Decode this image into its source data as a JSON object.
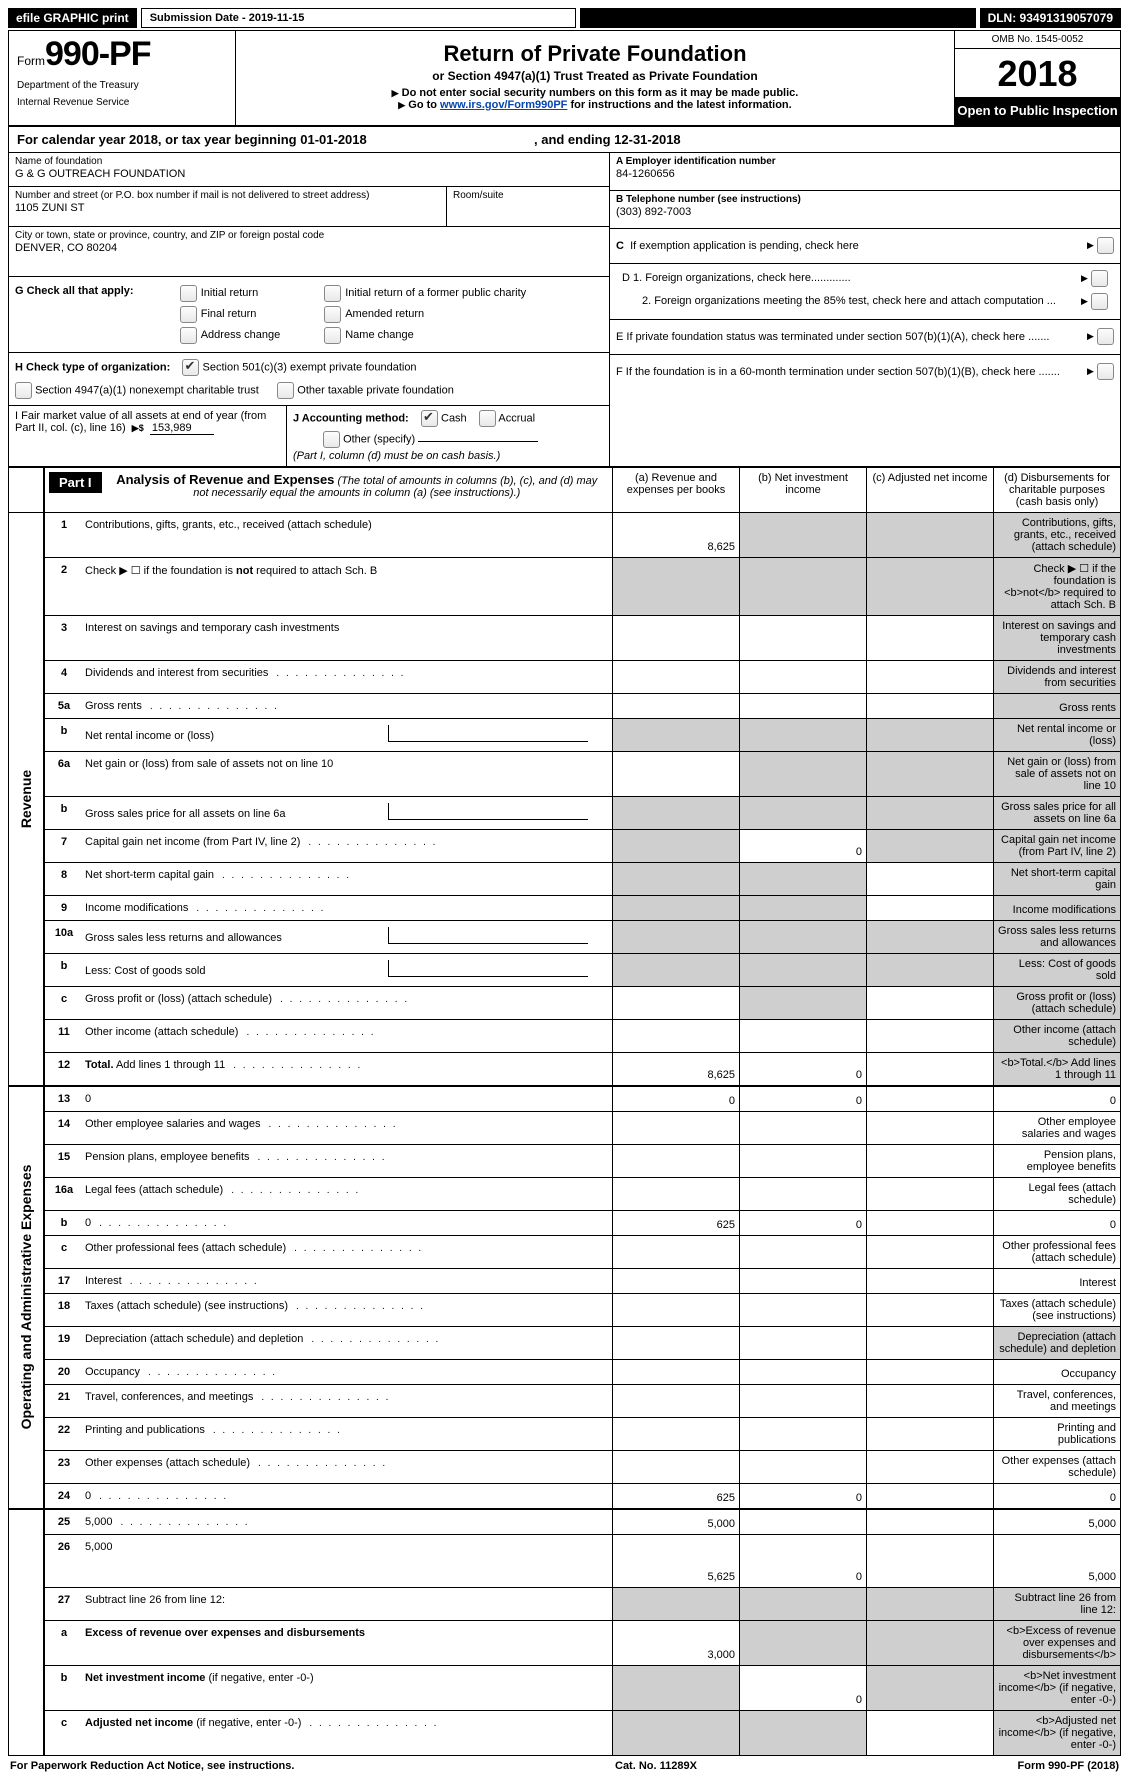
{
  "topbar": {
    "efile": "efile GRAPHIC print",
    "submission_label": "Submission Date - 2019-11-15",
    "dln": "DLN: 93491319057079"
  },
  "header": {
    "form_prefix": "Form",
    "form_number": "990-PF",
    "dept1": "Department of the Treasury",
    "dept2": "Internal Revenue Service",
    "title": "Return of Private Foundation",
    "subtitle1": "or Section 4947(a)(1) Trust Treated as Private Foundation",
    "subtitle2a": "Do not enter social security numbers on this form as it may be made public.",
    "subtitle2b_pre": "Go to ",
    "subtitle2b_link": "www.irs.gov/Form990PF",
    "subtitle2b_post": " for instructions and the latest information.",
    "omb": "OMB No. 1545-0052",
    "year": "2018",
    "open": "Open to Public Inspection"
  },
  "calendar_line": {
    "prefix": "For calendar year 2018, or tax year beginning ",
    "begin": "01-01-2018",
    "middle": " , and ending ",
    "end": "12-31-2018"
  },
  "entity": {
    "name_label": "Name of foundation",
    "name": "G & G OUTREACH FOUNDATION",
    "street_label": "Number and street (or P.O. box number if mail is not delivered to street address)",
    "street": "1105 ZUNI ST",
    "room_label": "Room/suite",
    "city_label": "City or town, state or province, country, and ZIP or foreign postal code",
    "city": "DENVER, CO  80204"
  },
  "boxesA_F": {
    "A_label": "A Employer identification number",
    "A_value": "84-1260656",
    "B_label": "B Telephone number (see instructions)",
    "B_value": "(303) 892-7003",
    "C_label": "C  If exemption application is pending, check here",
    "D1_label": "D 1. Foreign organizations, check here.............",
    "D2_label": "2. Foreign organizations meeting the 85% test, check here and attach computation ...",
    "E_label": "E   If private foundation status was terminated under section 507(b)(1)(A), check here .......",
    "F_label": "F   If the foundation is in a 60-month termination under section 507(b)(1)(B), check here ......."
  },
  "G": {
    "label": "G Check all that apply:",
    "opts": [
      "Initial return",
      "Initial return of a former public charity",
      "Final return",
      "Amended return",
      "Address change",
      "Name change"
    ]
  },
  "H": {
    "label": "H Check type of organization:",
    "opt1": "Section 501(c)(3) exempt private foundation",
    "opt1_checked": true,
    "opt2": "Section 4947(a)(1) nonexempt charitable trust",
    "opt3": "Other taxable private foundation"
  },
  "I": {
    "label": "I Fair market value of all assets at end of year (from Part II, col. (c), line 16)",
    "arrow": "▶$",
    "value": "153,989"
  },
  "J": {
    "label": "J Accounting method:",
    "cash": "Cash",
    "cash_checked": true,
    "accrual": "Accrual",
    "other": "Other (specify)",
    "note": "(Part I, column (d) must be on cash basis.)"
  },
  "part1": {
    "label": "Part I",
    "title": "Analysis of Revenue and Expenses",
    "note": "(The total of amounts in columns (b), (c), and (d) may not necessarily equal the amounts in column (a) (see instructions).)",
    "cols": {
      "a": "(a)    Revenue and expenses per books",
      "b": "(b)    Net investment income",
      "c": "(c)    Adjusted net income",
      "d": "(d)    Disbursements for charitable purposes (cash basis only)"
    }
  },
  "sections": {
    "rev": "Revenue",
    "exp": "Operating and Administrative Expenses"
  },
  "rows": [
    {
      "n": "1",
      "d": "Contributions, gifts, grants, etc., received (attach schedule)",
      "a": "8,625",
      "b_sh": true,
      "c_sh": true,
      "d_sh": true
    },
    {
      "n": "2",
      "d": "Check ▶ ☐ if the foundation is <b>not</b> required to attach Sch. B",
      "a_sh": true,
      "b_sh": true,
      "c_sh": true,
      "d_sh": true
    },
    {
      "n": "3",
      "d": "Interest on savings and temporary cash investments",
      "d_sh": true
    },
    {
      "n": "4",
      "d": "Dividends and interest from securities",
      "dots": true,
      "d_sh": true
    },
    {
      "n": "5a",
      "d": "Gross rents",
      "dots": true,
      "d_sh": true
    },
    {
      "n": "b",
      "d": "Net rental income or (loss)",
      "half": true,
      "a_sh": true,
      "b_sh": true,
      "c_sh": true,
      "d_sh": true
    },
    {
      "n": "6a",
      "d": "Net gain or (loss) from sale of assets not on line 10",
      "b_sh": true,
      "c_sh": true,
      "d_sh": true
    },
    {
      "n": "b",
      "d": "Gross sales price for all assets on line 6a",
      "half": true,
      "a_sh": true,
      "b_sh": true,
      "c_sh": true,
      "d_sh": true
    },
    {
      "n": "7",
      "d": "Capital gain net income (from Part IV, line 2)",
      "dots": true,
      "a_sh": true,
      "b": "0",
      "c_sh": true,
      "d_sh": true
    },
    {
      "n": "8",
      "d": "Net short-term capital gain",
      "dots": true,
      "a_sh": true,
      "b_sh": true,
      "d_sh": true
    },
    {
      "n": "9",
      "d": "Income modifications",
      "dots": true,
      "a_sh": true,
      "b_sh": true,
      "d_sh": true
    },
    {
      "n": "10a",
      "d": "Gross sales less returns and allowances",
      "half": true,
      "a_sh": true,
      "b_sh": true,
      "c_sh": true,
      "d_sh": true
    },
    {
      "n": "b",
      "d": "Less: Cost of goods sold",
      "dots": true,
      "half": true,
      "a_sh": true,
      "b_sh": true,
      "c_sh": true,
      "d_sh": true
    },
    {
      "n": "c",
      "d": "Gross profit or (loss) (attach schedule)",
      "dots": true,
      "b_sh": true,
      "d_sh": true
    },
    {
      "n": "11",
      "d": "Other income (attach schedule)",
      "dots": true,
      "d_sh": true
    },
    {
      "n": "12",
      "d": "<b>Total.</b> Add lines 1 through 11",
      "dots": true,
      "a": "8,625",
      "b": "0",
      "d_sh": true,
      "bold": true
    },
    {
      "n": "13",
      "d": "0",
      "section": "exp",
      "a": "0",
      "b": "0"
    },
    {
      "n": "14",
      "d": "Other employee salaries and wages",
      "dots": true
    },
    {
      "n": "15",
      "d": "Pension plans, employee benefits",
      "dots": true
    },
    {
      "n": "16a",
      "d": "Legal fees (attach schedule)",
      "dots": true
    },
    {
      "n": "b",
      "d": "0",
      "dots": true,
      "a": "625",
      "b": "0"
    },
    {
      "n": "c",
      "d": "Other professional fees (attach schedule)",
      "dots": true
    },
    {
      "n": "17",
      "d": "Interest",
      "dots": true
    },
    {
      "n": "18",
      "d": "Taxes (attach schedule) (see instructions)",
      "dots": true
    },
    {
      "n": "19",
      "d": "Depreciation (attach schedule) and depletion",
      "dots": true,
      "d_sh": true
    },
    {
      "n": "20",
      "d": "Occupancy",
      "dots": true
    },
    {
      "n": "21",
      "d": "Travel, conferences, and meetings",
      "dots": true
    },
    {
      "n": "22",
      "d": "Printing and publications",
      "dots": true
    },
    {
      "n": "23",
      "d": "Other expenses (attach schedule)",
      "dots": true
    },
    {
      "n": "24",
      "d": "0",
      "dots": true,
      "a": "625",
      "b": "0",
      "bold": true
    },
    {
      "n": "25",
      "d": "5,000",
      "dots": true,
      "a": "5,000"
    },
    {
      "n": "26",
      "d": "5,000",
      "a": "5,625",
      "b": "0",
      "bold": true,
      "tall": true
    },
    {
      "n": "27",
      "d": "Subtract line 26 from line 12:",
      "a_sh": true,
      "b_sh": true,
      "c_sh": true,
      "d_sh": true,
      "section": "sum"
    },
    {
      "n": "a",
      "d": "<b>Excess of revenue over expenses and disbursements</b>",
      "a": "3,000",
      "b_sh": true,
      "c_sh": true,
      "d_sh": true
    },
    {
      "n": "b",
      "d": "<b>Net investment income</b> (if negative, enter -0-)",
      "a_sh": true,
      "b": "0",
      "c_sh": true,
      "d_sh": true
    },
    {
      "n": "c",
      "d": "<b>Adjusted net income</b> (if negative, enter -0-)",
      "dots": true,
      "a_sh": true,
      "b_sh": true,
      "d_sh": true
    }
  ],
  "footer": {
    "left": "For Paperwork Reduction Act Notice, see instructions.",
    "mid": "Cat. No. 11289X",
    "right": "Form 990-PF (2018)"
  }
}
